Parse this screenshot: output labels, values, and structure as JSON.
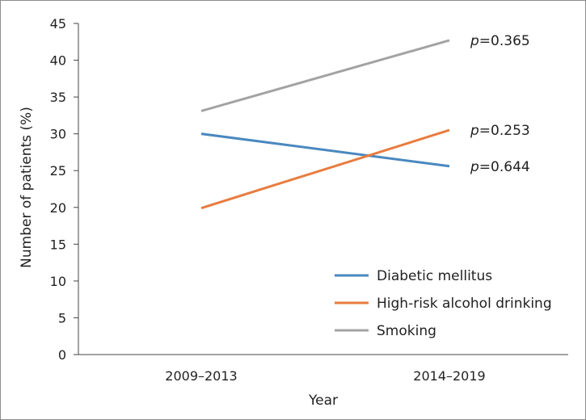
{
  "chart_data": {
    "type": "line",
    "xlabel": "Year",
    "ylabel": "Number of patients (%)",
    "categories": [
      "2009–2013",
      "2014–2019"
    ],
    "ylim": [
      0,
      45
    ],
    "yticks": [
      0,
      5,
      10,
      15,
      20,
      25,
      30,
      35,
      40,
      45
    ],
    "grid": false,
    "legend_position": "bottom-right",
    "series": [
      {
        "name": "Diabetic mellitus",
        "values": [
          30.0,
          25.6
        ],
        "color": "#4a88bf",
        "p_prefix": "p",
        "p_value": "=0.644"
      },
      {
        "name": "High-risk alcohol drinking",
        "values": [
          19.9,
          30.5
        ],
        "color": "#e87c40",
        "p_prefix": "p",
        "p_value": "=0.253"
      },
      {
        "name": "Smoking",
        "values": [
          33.1,
          42.7
        ],
        "color": "#a3a3a3",
        "p_prefix": "p",
        "p_value": "=0.365"
      }
    ]
  }
}
